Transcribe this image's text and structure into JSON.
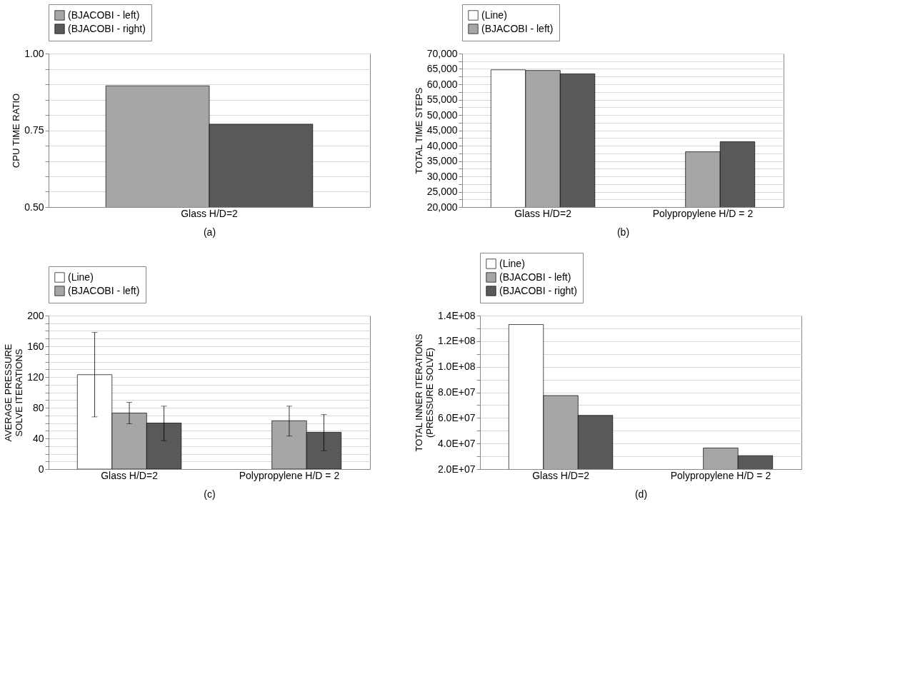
{
  "chart_data": [
    {
      "type": "bar",
      "ylabel": "CPU TIME RATIO",
      "xlabel": "(a)",
      "categories": [
        "Glass H/D=2"
      ],
      "series": [
        {
          "name": "(BJACOBI - left)",
          "color": "#a6a6a6",
          "values": [
            0.895
          ]
        },
        {
          "name": "(BJACOBI - right)",
          "color": "#595959",
          "values": [
            0.77
          ]
        }
      ],
      "ylim": [
        0.5,
        1.0
      ],
      "yticks": [
        {
          "value": 0.5,
          "label": "0.50"
        },
        {
          "value": 0.55,
          "label": null
        },
        {
          "value": 0.6,
          "label": null
        },
        {
          "value": 0.65,
          "label": null
        },
        {
          "value": 0.7,
          "label": null
        },
        {
          "value": 0.75,
          "label": "0.75"
        },
        {
          "value": 0.8,
          "label": null
        },
        {
          "value": 0.85,
          "label": null
        },
        {
          "value": 0.9,
          "label": null
        },
        {
          "value": 0.95,
          "label": null
        },
        {
          "value": 1.0,
          "label": "1.00"
        }
      ],
      "grid": "y",
      "legend": "top"
    },
    {
      "type": "bar",
      "ylabel": "TOTAL TIME STEPS",
      "xlabel": "(b)",
      "categories": [
        "Glass H/D=2",
        "Polypropylene H/D = 2"
      ],
      "series": [
        {
          "name": "(Line)",
          "color": "#ffffff",
          "values": [
            64700,
            null
          ]
        },
        {
          "name": "(BJACOBI - left)",
          "color": "#a6a6a6",
          "values": [
            64500,
            38000
          ]
        },
        {
          "color": "#595959",
          "values": [
            63400,
            41300
          ]
        }
      ],
      "ylim": [
        20000,
        70000
      ],
      "yticks": [
        {
          "value": 20000,
          "label": "20,000"
        },
        {
          "value": 22500,
          "label": null
        },
        {
          "value": 25000,
          "label": "25,000"
        },
        {
          "value": 27500,
          "label": null
        },
        {
          "value": 30000,
          "label": "30,000"
        },
        {
          "value": 32500,
          "label": null
        },
        {
          "value": 35000,
          "label": "35,000"
        },
        {
          "value": 37500,
          "label": null
        },
        {
          "value": 40000,
          "label": "40,000"
        },
        {
          "value": 42500,
          "label": null
        },
        {
          "value": 45000,
          "label": "45,000"
        },
        {
          "value": 47500,
          "label": null
        },
        {
          "value": 50000,
          "label": "50,000"
        },
        {
          "value": 52500,
          "label": null
        },
        {
          "value": 55000,
          "label": "55,000"
        },
        {
          "value": 57500,
          "label": null
        },
        {
          "value": 60000,
          "label": "60,000"
        },
        {
          "value": 62500,
          "label": null
        },
        {
          "value": 65000,
          "label": "65,000"
        },
        {
          "value": 67500,
          "label": null
        },
        {
          "value": 70000,
          "label": "70,000"
        }
      ],
      "grid": "y",
      "legend": "top"
    },
    {
      "type": "bar",
      "ylabel": "AVERAGE PRESSURE SOLVE ITERATIONS",
      "xlabel": "(c)",
      "categories": [
        "Glass H/D=2",
        "Polypropylene H/D = 2"
      ],
      "series": [
        {
          "name": "(Line)",
          "color": "#ffffff",
          "values": [
            123,
            null
          ],
          "errors": [
            [
              68,
              178
            ],
            null
          ]
        },
        {
          "name": "(BJACOBI - left)",
          "color": "#a6a6a6",
          "values": [
            73,
            63
          ],
          "errors": [
            [
              59,
              87
            ],
            [
              43,
              82
            ]
          ]
        },
        {
          "color": "#595959",
          "values": [
            60,
            48
          ],
          "errors": [
            [
              37,
              82
            ],
            [
              24,
              71
            ]
          ]
        }
      ],
      "ylim": [
        0,
        200
      ],
      "yticks": [
        0,
        {
          "value": 10,
          "label": null
        },
        {
          "value": 20,
          "label": null
        },
        {
          "value": 30,
          "label": null
        },
        40,
        {
          "value": 50,
          "label": null
        },
        {
          "value": 60,
          "label": null
        },
        {
          "value": 70,
          "label": null
        },
        80,
        {
          "value": 90,
          "label": null
        },
        {
          "value": 100,
          "label": null
        },
        {
          "value": 110,
          "label": null
        },
        120,
        {
          "value": 130,
          "label": null
        },
        {
          "value": 140,
          "label": null
        },
        {
          "value": 150,
          "label": null
        },
        160,
        {
          "value": 170,
          "label": null
        },
        {
          "value": 180,
          "label": null
        },
        {
          "value": 190,
          "label": null
        },
        200
      ],
      "grid": "y",
      "legend": "top"
    },
    {
      "type": "bar",
      "ylabel": "TOTAL INNER ITERATIONS (PRESSURE SOLVE)",
      "xlabel": "(d)",
      "categories": [
        "Glass H/D=2",
        "Polypropylene H/D = 2"
      ],
      "series": [
        {
          "name": "(Line)",
          "color": "#ffffff",
          "values": [
            133000000,
            null
          ]
        },
        {
          "name": "(BJACOBI - left)",
          "color": "#a6a6a6",
          "values": [
            77500000,
            36500000
          ]
        },
        {
          "name": "(BJACOBI - right)",
          "color": "#595959",
          "values": [
            62000000,
            30500000
          ]
        }
      ],
      "ylim": [
        20000000,
        140000000
      ],
      "yticks": [
        {
          "value": 20000000,
          "label": "2.0E+07"
        },
        {
          "value": 30000000,
          "label": null
        },
        {
          "value": 40000000,
          "label": "4.0E+07"
        },
        {
          "value": 50000000,
          "label": null
        },
        {
          "value": 60000000,
          "label": "6.0E+07"
        },
        {
          "value": 70000000,
          "label": null
        },
        {
          "value": 80000000,
          "label": "8.0E+07"
        },
        {
          "value": 90000000,
          "label": null
        },
        {
          "value": 100000000,
          "label": "1.0E+08"
        },
        {
          "value": 110000000,
          "label": null
        },
        {
          "value": 120000000,
          "label": "1.2E+08"
        },
        {
          "value": 130000000,
          "label": null
        },
        {
          "value": 140000000,
          "label": "1.4E+08"
        }
      ],
      "grid": "y",
      "legend": "top"
    }
  ]
}
